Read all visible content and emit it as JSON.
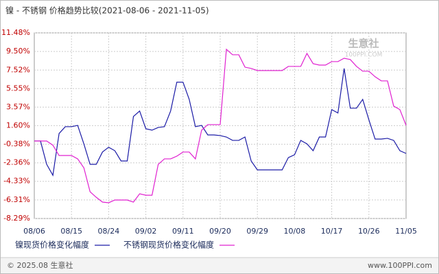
{
  "chart_data": {
    "type": "line",
    "title": "镍 - 不锈钢 价格趋势比较(2021-08-06 - 2021-11-05)",
    "categories": [
      "08/06",
      null,
      null,
      null,
      null,
      null,
      "08/15",
      null,
      null,
      null,
      null,
      null,
      "08/24",
      null,
      null,
      null,
      null,
      null,
      "09/02",
      null,
      null,
      null,
      null,
      null,
      "09/11",
      null,
      null,
      null,
      null,
      null,
      "09/20",
      null,
      null,
      null,
      null,
      null,
      "09/29",
      null,
      null,
      null,
      null,
      null,
      "10/08",
      null,
      null,
      null,
      null,
      null,
      "10/17",
      null,
      null,
      null,
      null,
      null,
      "10/26",
      null,
      null,
      null,
      null,
      null,
      "11/05"
    ],
    "series": [
      {
        "name": "镍现货价格变化幅度",
        "color": "#1a1aa6",
        "values": [
          -0.04,
          -0.04,
          -2.52,
          -3.69,
          0.76,
          1.49,
          1.49,
          1.63,
          -0.34,
          -2.52,
          -2.52,
          -1.21,
          -0.7,
          -1.07,
          -2.16,
          -2.16,
          2.58,
          3.16,
          1.27,
          1.12,
          1.41,
          1.49,
          3.16,
          6.23,
          6.23,
          4.4,
          1.49,
          1.63,
          0.61,
          0.61,
          0.54,
          0.39,
          0.03,
          0.03,
          0.39,
          -2.16,
          -3.11,
          -3.11,
          -3.11,
          -3.11,
          -3.11,
          -1.8,
          -1.5,
          0.03,
          -0.34,
          -1.07,
          0.39,
          0.39,
          3.31,
          2.95,
          7.69,
          3.46,
          3.46,
          4.4,
          2.22,
          0.17,
          0.17,
          0.25,
          0.03,
          -1.07,
          -1.36
        ]
      },
      {
        "name": "不锈钢现货价格变化幅度",
        "color": "#e020d0",
        "values": [
          -0.04,
          -0.04,
          -0.04,
          -0.48,
          -1.58,
          -1.58,
          -1.58,
          -1.94,
          -2.89,
          -5.44,
          -6.03,
          -6.54,
          -6.61,
          -6.32,
          -6.32,
          -6.32,
          -6.54,
          -5.66,
          -5.81,
          -5.81,
          -2.52,
          -1.94,
          -1.94,
          -1.65,
          -1.21,
          -1.21,
          -1.94,
          1.12,
          1.71,
          1.71,
          1.71,
          9.73,
          9.15,
          9.15,
          7.83,
          7.69,
          7.47,
          7.47,
          7.47,
          7.47,
          7.47,
          7.91,
          7.91,
          7.91,
          9.29,
          8.2,
          8.05,
          8.05,
          8.42,
          8.42,
          8.78,
          8.64,
          7.91,
          7.4,
          7.4,
          6.81,
          6.37,
          6.37,
          3.68,
          3.31,
          1.63
        ]
      }
    ],
    "ylim": [
      -8.29,
      11.48
    ],
    "yticks": [
      {
        "value": 11.48,
        "label": "11.48%"
      },
      {
        "value": 9.5,
        "label": "9.50%"
      },
      {
        "value": 7.52,
        "label": "7.52%"
      },
      {
        "value": 5.55,
        "label": "5.55%"
      },
      {
        "value": 3.57,
        "label": "3.57%"
      },
      {
        "value": 1.6,
        "label": "1.60%"
      },
      {
        "value": -0.38,
        "label": "-0.38%"
      },
      {
        "value": -2.36,
        "label": "-2.36%"
      },
      {
        "value": -4.33,
        "label": "-4.33%"
      },
      {
        "value": -6.31,
        "label": "-6.31%"
      },
      {
        "value": -8.29,
        "label": "-8.29%"
      }
    ],
    "grid": true,
    "watermark": [
      "生意社",
      "100PPI.COM"
    ],
    "footer": {
      "left": "© 2025.08 生意社",
      "right": "www.100PPI.com"
    }
  }
}
